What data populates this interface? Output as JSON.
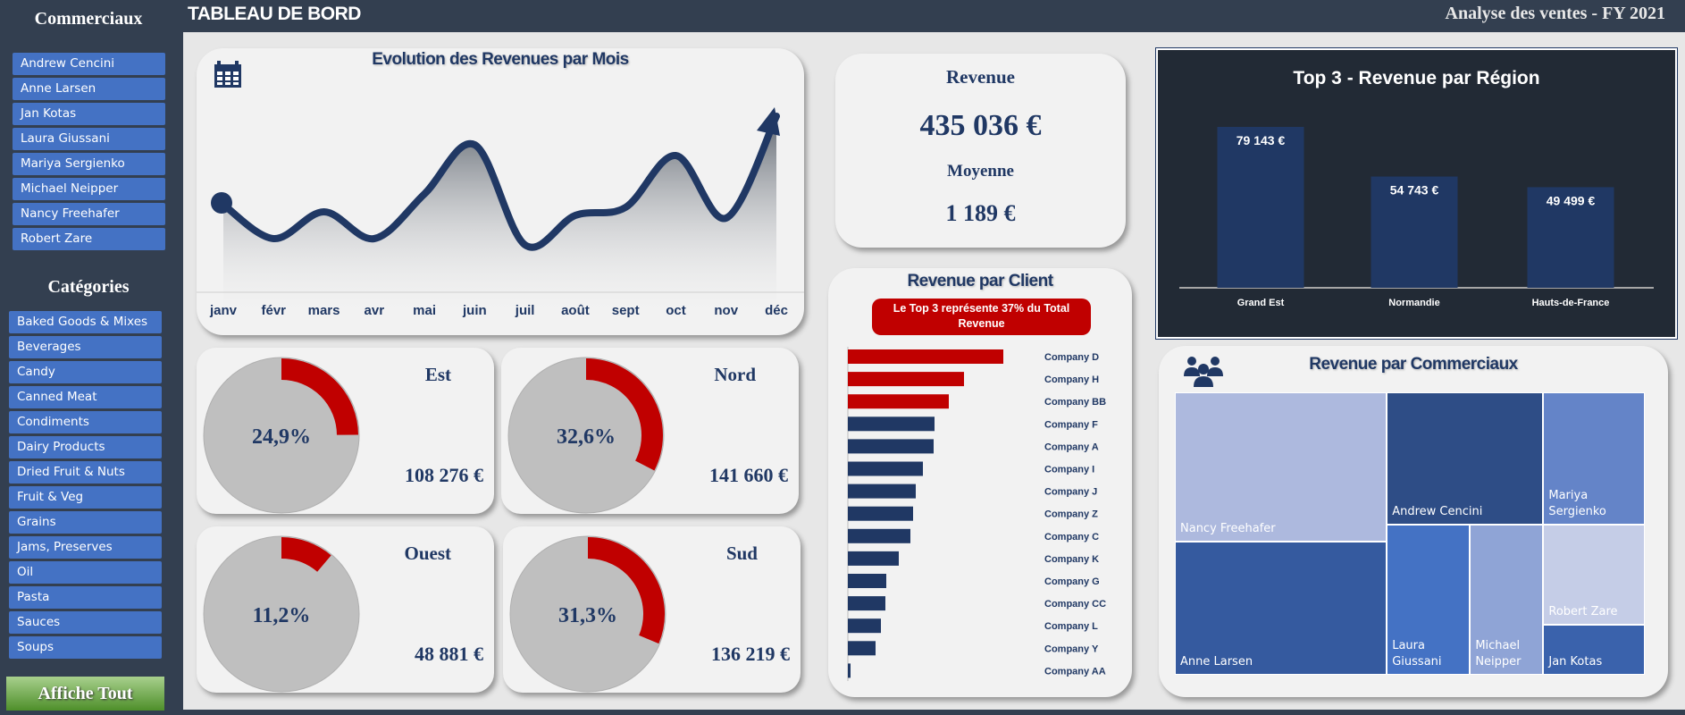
{
  "header": {
    "title": "TABLEAU DE BORD",
    "subtitle": "Analyse des ventes - FY 2021"
  },
  "sidebar": {
    "commerciaux_title": "Commerciaux",
    "commerciaux": [
      "Andrew Cencini",
      "Anne Larsen",
      "Jan Kotas",
      "Laura Giussani",
      "Mariya Sergienko",
      "Michael Neipper",
      "Nancy Freehafer",
      "Robert Zare"
    ],
    "categories_title": "Catégories",
    "categories": [
      "Baked Goods & Mixes",
      "Beverages",
      "Candy",
      "Canned Meat",
      "Condiments",
      "Dairy Products",
      "Dried Fruit & Nuts",
      "Fruit & Veg",
      "Grains",
      "Jams, Preserves",
      "Oil",
      "Pasta",
      "Sauces",
      "Soups"
    ],
    "show_all": "Affiche Tout"
  },
  "colors": {
    "navy": "#203864",
    "red": "#c00000",
    "button": "#4472c4",
    "dark": "#222a35",
    "gray": "#bfbfbf"
  },
  "kpi": {
    "revenue_label": "Revenue",
    "revenue_value": "435 036 €",
    "average_label": "Moyenne",
    "average_value": "1 189 €"
  },
  "regions": [
    {
      "name": "Est",
      "percent": 24.9,
      "percent_label": "24,9%",
      "value": "108 276 €"
    },
    {
      "name": "Nord",
      "percent": 32.6,
      "percent_label": "32,6%",
      "value": "141 660 €"
    },
    {
      "name": "Ouest",
      "percent": 11.2,
      "percent_label": "11,2%",
      "value": "48 881 €"
    },
    {
      "name": "Sud",
      "percent": 31.3,
      "percent_label": "31,3%",
      "value": "136 219 €"
    }
  ],
  "client_note": "Le Top 3 représente 37% du Total Revenue",
  "treemap": {
    "title": "Revenue par Commerciaux",
    "items": [
      "Nancy Freehafer",
      "Anne Larsen",
      "Andrew Cencini",
      "Mariya Sergienko",
      "Laura Giussani",
      "Michael Neipper",
      "Robert Zare",
      "Jan Kotas"
    ]
  },
  "chart_data": [
    {
      "type": "area",
      "title": "Evolution des Revenues par Mois",
      "categories": [
        "janv",
        "févr",
        "mars",
        "avr",
        "mai",
        "juin",
        "juil",
        "août",
        "sept",
        "oct",
        "nov",
        "déc"
      ],
      "values": [
        98,
        60,
        90,
        60,
        110,
        165,
        53,
        86,
        95,
        153,
        83,
        197
      ],
      "grid": false
    },
    {
      "type": "bar",
      "title": "Top 3 - Revenue par Région",
      "categories": [
        "Grand Est",
        "Normandie",
        "Hauts-de-France"
      ],
      "values": [
        79143,
        54743,
        49499
      ],
      "data_labels": [
        "79 143 €",
        "54 743 €",
        "49 499 €"
      ],
      "grid": false
    },
    {
      "type": "bar",
      "orientation": "horizontal",
      "title": "Revenue par Client",
      "categories": [
        "Company D",
        "Company H",
        "Company BB",
        "Company F",
        "Company A",
        "Company I",
        "Company J",
        "Company Z",
        "Company C",
        "Company K",
        "Company G",
        "Company CC",
        "Company L",
        "Company Y",
        "Company AA"
      ],
      "values": [
        174,
        130,
        113,
        97,
        96,
        84,
        76,
        73,
        70,
        57,
        43,
        42,
        37,
        31,
        3
      ],
      "highlight_top": 3,
      "grid": false
    }
  ]
}
